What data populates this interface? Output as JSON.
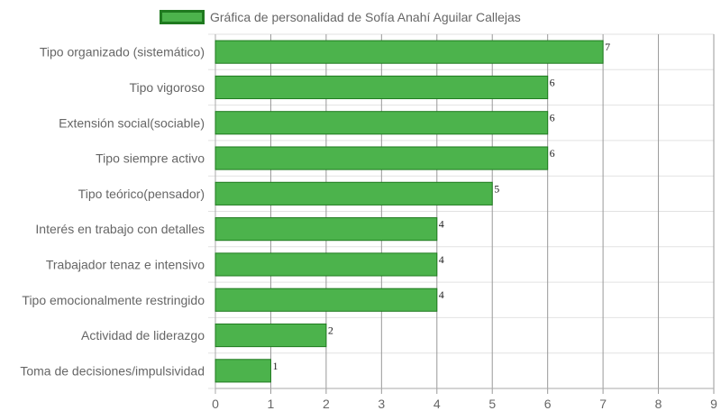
{
  "chart_data": {
    "type": "bar",
    "orientation": "horizontal",
    "legend_position": "top",
    "series": [
      {
        "name": "Gráfica de personalidad de Sofía Anahí Aguilar Callejas",
        "color": "#4cb34c",
        "border_color": "#1f7a1f",
        "values": [
          7,
          6,
          6,
          6,
          5,
          4,
          4,
          4,
          2,
          1
        ]
      }
    ],
    "categories": [
      "Tipo organizado (sistemático)",
      "Tipo vigoroso",
      "Extensión social(sociable)",
      "Tipo siempre activo",
      "Tipo teórico(pensador)",
      "Interés en trabajo con detalles",
      "Trabajador tenaz e intensivo",
      "Tipo emocionalmente restringido",
      "Actividad de liderazgo",
      "Toma de decisiones/impulsividad"
    ],
    "x_ticks": [
      "0",
      "1",
      "2",
      "3",
      "4",
      "5",
      "6",
      "7",
      "8",
      "9"
    ],
    "xlim": [
      0,
      9
    ],
    "grid": true,
    "data_labels": true
  }
}
